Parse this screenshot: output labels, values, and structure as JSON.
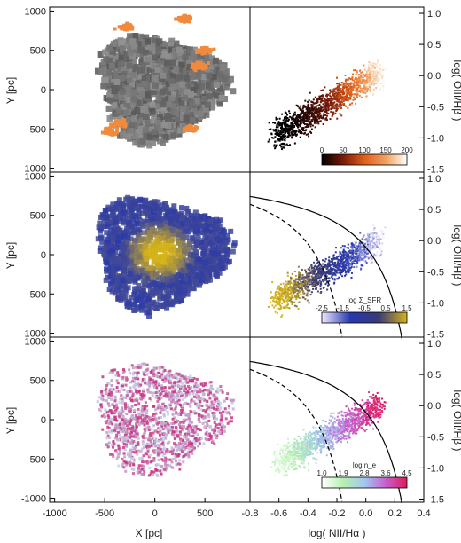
{
  "chart_data": [
    {
      "type": "scatter",
      "panel": "left",
      "xlabel": "X [pc]",
      "ylabel": "Y [pc]",
      "xlim": [
        -1050,
        950
      ],
      "ylim": [
        -1050,
        1050
      ],
      "xticks": [
        "-1000",
        "-500",
        "0",
        "500"
      ],
      "yticks": [
        "1000",
        "500",
        "0",
        "-500",
        "-1000"
      ],
      "rows": [
        {
          "name": "top",
          "map_colors": [
            "#3a3a3a",
            "#b0b0b0"
          ],
          "highlight_color": "#f08a3c"
        },
        {
          "name": "middle",
          "map_colors": [
            "#2c3aa8",
            "#d4b21a"
          ]
        },
        {
          "name": "bottom",
          "map_colors": [
            "#c0d8f0",
            "#c8287a"
          ]
        }
      ]
    },
    {
      "type": "scatter",
      "panel": "right",
      "xlabel": "log( NII/Hα )",
      "ylabel": "log( OIII/Hβ )",
      "xlim": [
        -0.8,
        0.4
      ],
      "ylim": [
        -1.55,
        1.1
      ],
      "xticks": [
        "-0.8",
        "-0.6",
        "-0.4",
        "-0.2",
        "0.0",
        "0.2",
        "0.4"
      ],
      "yticks": [
        "1.0",
        "0.5",
        "0.0",
        "-0.5",
        "-1.0",
        "-1.5"
      ],
      "curves": {
        "kauffmann_solid": true,
        "kewley_dashed": true
      },
      "colorbars": [
        {
          "label": "",
          "ticks": [
            "0",
            "50",
            "100",
            "150",
            "200"
          ],
          "range": [
            0,
            200
          ],
          "colors": [
            "#000000",
            "#7a1a0a",
            "#e0601a",
            "#f0a060",
            "#ffffff"
          ]
        },
        {
          "label": "log Σ_SFR",
          "ticks": [
            "-2.5",
            "-1.5",
            "-0.5",
            "0.5",
            "1.5"
          ],
          "range": [
            -2.5,
            1.5
          ],
          "colors": [
            "#f0e8ff",
            "#2838b0",
            "#3a3a78",
            "#d4b21a"
          ]
        },
        {
          "label": "log n_e",
          "ticks": [
            "1.0",
            "1.9",
            "2.8",
            "3.6",
            "4.5"
          ],
          "range": [
            1.0,
            4.5
          ],
          "colors": [
            "#ffffff",
            "#b8f0b0",
            "#a0c8f0",
            "#c860d0",
            "#e0185a"
          ]
        }
      ]
    }
  ]
}
